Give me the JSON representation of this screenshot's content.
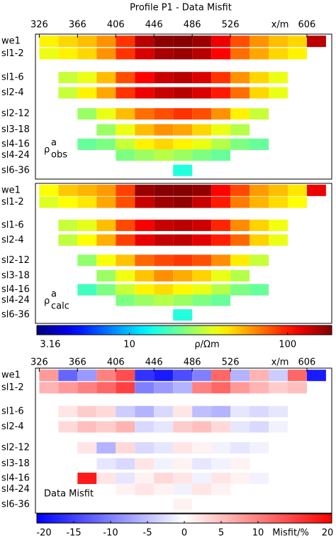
{
  "chart_data": [
    {
      "type": "heatmap",
      "title": "Profile P1 - Data Misfit",
      "xlabel": "x/m",
      "xlim": [
        322,
        632
      ],
      "xticks": [
        326,
        366,
        406,
        446,
        486,
        526,
        606
      ],
      "x": [
        336,
        356,
        376,
        396,
        416,
        436,
        456,
        476,
        496,
        516,
        536,
        556,
        576,
        596,
        616
      ],
      "categories": [
        "we1",
        "sl1-2",
        "sl1-6",
        "sl2-4",
        "sl2-12",
        "sl3-18",
        "sl4-16",
        "sl4-24",
        "sl6-36"
      ],
      "label": {
        "main": "ρ",
        "sup": "a",
        "sub": "obs"
      },
      "colorscale": "jet",
      "log": true,
      "clim": [
        2.6,
        190
      ],
      "values": [
        [
          40,
          45,
          50,
          60,
          90,
          150,
          180,
          185,
          170,
          120,
          80,
          60,
          50,
          45,
          150
        ],
        [
          35,
          40,
          45,
          60,
          90,
          130,
          160,
          170,
          150,
          110,
          70,
          55,
          45,
          40,
          null
        ],
        [
          null,
          30,
          35,
          50,
          80,
          110,
          140,
          150,
          130,
          90,
          60,
          45,
          35,
          null,
          null
        ],
        [
          null,
          30,
          40,
          55,
          90,
          120,
          140,
          150,
          130,
          100,
          70,
          45,
          35,
          null,
          null
        ],
        [
          null,
          null,
          25,
          35,
          50,
          70,
          80,
          90,
          80,
          60,
          40,
          30,
          null,
          null,
          null
        ],
        [
          null,
          null,
          null,
          25,
          35,
          50,
          60,
          55,
          45,
          35,
          28,
          null,
          null,
          null,
          null
        ],
        [
          null,
          null,
          20,
          22,
          30,
          40,
          45,
          40,
          35,
          28,
          22,
          20,
          null,
          null,
          null
        ],
        [
          null,
          null,
          null,
          null,
          22,
          25,
          28,
          25,
          22,
          20,
          null,
          null,
          null,
          null,
          null
        ],
        [
          null,
          null,
          null,
          null,
          null,
          null,
          null,
          15,
          null,
          null,
          null,
          null,
          null,
          null,
          null
        ]
      ]
    },
    {
      "type": "heatmap",
      "xlim": [
        322,
        632
      ],
      "x": [
        336,
        356,
        376,
        396,
        416,
        436,
        456,
        476,
        496,
        516,
        536,
        556,
        576,
        596,
        616
      ],
      "categories": [
        "we1",
        "sl1-2",
        "sl1-6",
        "sl2-4",
        "sl2-12",
        "sl3-18",
        "sl4-16",
        "sl4-24",
        "sl6-36"
      ],
      "label": {
        "main": "ρ",
        "sup": "a",
        "sub": "calc"
      },
      "colorscale": "jet",
      "log": true,
      "clim": [
        2.6,
        190
      ],
      "values": [
        [
          38,
          48,
          52,
          58,
          85,
          170,
          185,
          185,
          175,
          110,
          82,
          58,
          50,
          42,
          120
        ],
        [
          33,
          38,
          42,
          55,
          80,
          140,
          165,
          175,
          140,
          100,
          66,
          52,
          44,
          38,
          null
        ],
        [
          null,
          30,
          34,
          50,
          82,
          115,
          140,
          148,
          135,
          95,
          62,
          46,
          36,
          null,
          null
        ],
        [
          null,
          29,
          38,
          53,
          85,
          122,
          142,
          145,
          125,
          98,
          72,
          46,
          35,
          null,
          null
        ],
        [
          null,
          null,
          24,
          37,
          49,
          72,
          82,
          88,
          79,
          61,
          41,
          30,
          null,
          null,
          null
        ],
        [
          null,
          null,
          null,
          25,
          36,
          49,
          61,
          54,
          46,
          35,
          28,
          null,
          null,
          null,
          null
        ],
        [
          null,
          null,
          17,
          22,
          30,
          40,
          44,
          39,
          35,
          28,
          22,
          20,
          null,
          null,
          null
        ],
        [
          null,
          null,
          null,
          null,
          22,
          25,
          28,
          25,
          22,
          20,
          null,
          null,
          null,
          null,
          null
        ],
        [
          null,
          null,
          null,
          null,
          null,
          null,
          null,
          15,
          null,
          null,
          null,
          null,
          null,
          null,
          null
        ]
      ]
    },
    {
      "type": "colorbar",
      "label": "ρ/Ωm",
      "colorscale": "jet",
      "log": true,
      "xlim": [
        2.6,
        190
      ],
      "xticks": [
        3.16,
        10,
        100
      ]
    },
    {
      "type": "heatmap",
      "xlabel": "x/m",
      "xlim": [
        322,
        632
      ],
      "xticks": [
        326,
        366,
        406,
        446,
        486,
        526,
        606
      ],
      "x": [
        336,
        356,
        376,
        396,
        416,
        436,
        456,
        476,
        496,
        516,
        536,
        556,
        576,
        596,
        616
      ],
      "categories": [
        "we1",
        "sl1-2",
        "sl1-6",
        "sl2-4",
        "sl2-12",
        "sl3-18",
        "sl4-16",
        "sl4-24",
        "sl6-36"
      ],
      "label": {
        "main": "Data Misfit"
      },
      "colorscale": "bwr",
      "log": false,
      "clim": [
        -20,
        20
      ],
      "values": [
        [
          8,
          -12,
          -8,
          10,
          14,
          -16,
          -18,
          -14,
          -10,
          12,
          -6,
          6,
          -4,
          12,
          -18
        ],
        [
          6,
          8,
          10,
          12,
          15,
          -10,
          -8,
          -6,
          10,
          12,
          8,
          6,
          4,
          5,
          null
        ],
        [
          null,
          2,
          4,
          3,
          -4,
          -6,
          -3,
          2,
          -5,
          -6,
          -2,
          -3,
          -2,
          null,
          null
        ],
        [
          null,
          3,
          5,
          4,
          6,
          -3,
          -2,
          4,
          5,
          3,
          -2,
          -3,
          -1,
          null,
          null
        ],
        [
          null,
          null,
          2,
          -6,
          3,
          -3,
          -2,
          2,
          1,
          -1,
          -2,
          -1,
          null,
          null,
          null
        ],
        [
          null,
          null,
          null,
          -2,
          -3,
          2,
          -1,
          1,
          -2,
          -1,
          1,
          null,
          null,
          null,
          null
        ],
        [
          null,
          null,
          18,
          2,
          -2,
          1,
          3,
          2,
          -1,
          2,
          1,
          -1,
          null,
          null,
          null
        ],
        [
          null,
          null,
          null,
          null,
          1,
          2,
          1,
          -1,
          2,
          1,
          null,
          null,
          null,
          null,
          null
        ],
        [
          null,
          null,
          null,
          null,
          null,
          null,
          null,
          1,
          null,
          null,
          null,
          null,
          null,
          null,
          null
        ]
      ]
    },
    {
      "type": "colorbar",
      "label": "Misfit/%",
      "colorscale": "bwr",
      "log": false,
      "xlim": [
        -20,
        20
      ],
      "xticks": [
        -20,
        -15,
        -10,
        -5,
        0,
        5,
        10,
        20
      ]
    }
  ]
}
